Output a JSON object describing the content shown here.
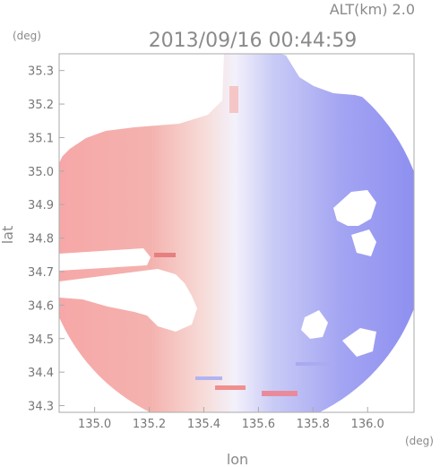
{
  "header": {
    "alt_label": "ALT(km) 2.0",
    "timestamp": "2013/09/16 00:44:59"
  },
  "chart_data": {
    "type": "heatmap",
    "title": "2013/09/16 00:44:59",
    "subtitle": "ALT(km) 2.0",
    "xlabel": "lon",
    "ylabel": "lat",
    "x_unit": "(deg)",
    "y_unit": "(deg)",
    "xlim": [
      134.87,
      136.17
    ],
    "ylim": [
      34.28,
      35.35
    ],
    "x_ticks": [
      {
        "v": 135.0,
        "label": "135.0"
      },
      {
        "v": 135.2,
        "label": "135.2"
      },
      {
        "v": 135.4,
        "label": "135.4"
      },
      {
        "v": 135.6,
        "label": "135.6"
      },
      {
        "v": 135.8,
        "label": "135.8"
      },
      {
        "v": 136.0,
        "label": "136.0"
      }
    ],
    "y_ticks": [
      {
        "v": 34.3,
        "label": "34.3"
      },
      {
        "v": 34.4,
        "label": "34.4"
      },
      {
        "v": 34.5,
        "label": "34.5"
      },
      {
        "v": 34.6,
        "label": "34.6"
      },
      {
        "v": 34.7,
        "label": "34.7"
      },
      {
        "v": 34.8,
        "label": "34.8"
      },
      {
        "v": 34.9,
        "label": "34.9"
      },
      {
        "v": 35.0,
        "label": "35.0"
      },
      {
        "v": 35.1,
        "label": "35.1"
      },
      {
        "v": 35.2,
        "label": "35.2"
      },
      {
        "v": 35.3,
        "label": "35.3"
      }
    ],
    "grid": false,
    "colors": {
      "positive": "#f49a9a",
      "neutral": "#f3f1fb",
      "negative": "#8b8cf0"
    }
  }
}
